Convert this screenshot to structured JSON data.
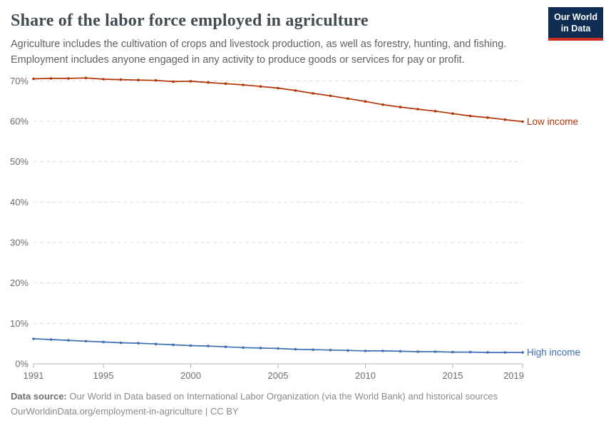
{
  "header": {
    "title": "Share of the labor force employed in agriculture",
    "subtitle": {
      "line1": "Agriculture includes the cultivation of crops and livestock production, as well as forestry, hunting, and fishing.",
      "line2": "Employment includes anyone engaged in any activity to produce goods or services for pay or profit."
    },
    "logo": {
      "line1": "Our World",
      "line2": "in Data",
      "bg_color": "#0f2d52",
      "accent_color": "#cb2d24"
    }
  },
  "chart_data": {
    "type": "line",
    "title": "Share of the labor force employed in agriculture",
    "x": [
      1991,
      1992,
      1993,
      1994,
      1995,
      1996,
      1997,
      1998,
      1999,
      2000,
      2001,
      2002,
      2003,
      2004,
      2005,
      2006,
      2007,
      2008,
      2009,
      2010,
      2011,
      2012,
      2013,
      2014,
      2015,
      2016,
      2017,
      2018,
      2019
    ],
    "series": [
      {
        "name": "Low income",
        "color": "#b13507",
        "values": [
          70.5,
          70.6,
          70.6,
          70.7,
          70.4,
          70.3,
          70.2,
          70.1,
          69.8,
          69.9,
          69.6,
          69.3,
          69.0,
          68.6,
          68.2,
          67.6,
          66.9,
          66.3,
          65.6,
          64.9,
          64.1,
          63.5,
          63.0,
          62.5,
          61.9,
          61.3,
          60.9,
          60.4,
          59.9
        ]
      },
      {
        "name": "High income",
        "color": "#3d6fb2",
        "values": [
          6.2,
          6.0,
          5.8,
          5.6,
          5.4,
          5.2,
          5.1,
          4.9,
          4.7,
          4.5,
          4.4,
          4.2,
          4.0,
          3.9,
          3.8,
          3.6,
          3.5,
          3.4,
          3.3,
          3.2,
          3.2,
          3.1,
          3.0,
          3.0,
          2.9,
          2.9,
          2.8,
          2.8,
          2.8
        ]
      }
    ],
    "ylim": [
      0,
      70
    ],
    "yticks": [
      0,
      10,
      20,
      30,
      40,
      50,
      60,
      70
    ],
    "ytick_suffix": "%",
    "xticks": [
      1991,
      1995,
      2000,
      2005,
      2010,
      2015,
      2019
    ],
    "grid": "dashed-horizontal",
    "grid_color": "#dcdcdc",
    "axis_color": "#b5b5b5",
    "tick_label_color": "#6e6e6e",
    "legend_position": "end-of-line-labels"
  },
  "footer": {
    "source_label": "Data source:",
    "source_text": " Our World in Data based on International Labor Organization (via the World Bank) and historical sources",
    "url_line": "OurWorldinData.org/employment-in-agriculture | CC BY"
  }
}
